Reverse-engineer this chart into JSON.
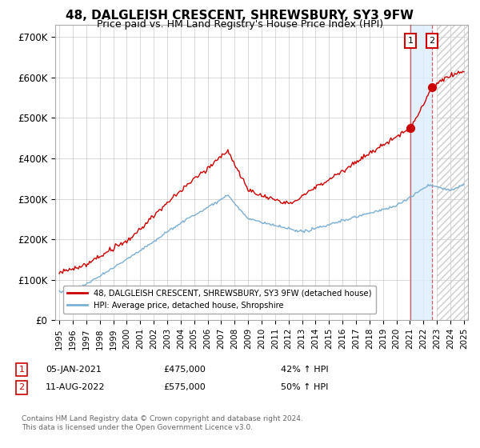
{
  "title": "48, DALGLEISH CRESCENT, SHREWSBURY, SY3 9FW",
  "subtitle": "Price paid vs. HM Land Registry's House Price Index (HPI)",
  "title_fontsize": 11,
  "subtitle_fontsize": 9,
  "ylabel_ticks": [
    "£0",
    "£100K",
    "£200K",
    "£300K",
    "£400K",
    "£500K",
    "£600K",
    "£700K"
  ],
  "ytick_vals": [
    0,
    100000,
    200000,
    300000,
    400000,
    500000,
    600000,
    700000
  ],
  "ylim": [
    0,
    730000
  ],
  "xlim_start": 1994.7,
  "xlim_end": 2025.3,
  "xtick_labels": [
    "1995",
    "1996",
    "1997",
    "1998",
    "1999",
    "2000",
    "2001",
    "2002",
    "2003",
    "2004",
    "2005",
    "2006",
    "2007",
    "2008",
    "2009",
    "2010",
    "2011",
    "2012",
    "2013",
    "2014",
    "2015",
    "2016",
    "2017",
    "2018",
    "2019",
    "2020",
    "2021",
    "2022",
    "2023",
    "2024",
    "2025"
  ],
  "xtick_vals": [
    1995,
    1996,
    1997,
    1998,
    1999,
    2000,
    2001,
    2002,
    2003,
    2004,
    2005,
    2006,
    2007,
    2008,
    2009,
    2010,
    2011,
    2012,
    2013,
    2014,
    2015,
    2016,
    2017,
    2018,
    2019,
    2020,
    2021,
    2022,
    2023,
    2024,
    2025
  ],
  "hpi_color": "#7bafd4",
  "price_color": "#cc0000",
  "annotation_box_color": "#cc0000",
  "shading_color": "#ddeeff",
  "legend_label_price": "48, DALGLEISH CRESCENT, SHREWSBURY, SY3 9FW (detached house)",
  "legend_label_hpi": "HPI: Average price, detached house, Shropshire",
  "sale1_date": 2021.04,
  "sale1_price": 475000,
  "sale1_label": "1",
  "sale2_date": 2022.62,
  "sale2_price": 575000,
  "sale2_label": "2",
  "note1_date": "05-JAN-2021",
  "note1_price": "£475,000",
  "note1_pct": "42% ↑ HPI",
  "note2_date": "11-AUG-2022",
  "note2_price": "£575,000",
  "note2_pct": "50% ↑ HPI",
  "footer": "Contains HM Land Registry data © Crown copyright and database right 2024.\nThis data is licensed under the Open Government Licence v3.0.",
  "background_color": "#ffffff",
  "grid_color": "#cccccc"
}
